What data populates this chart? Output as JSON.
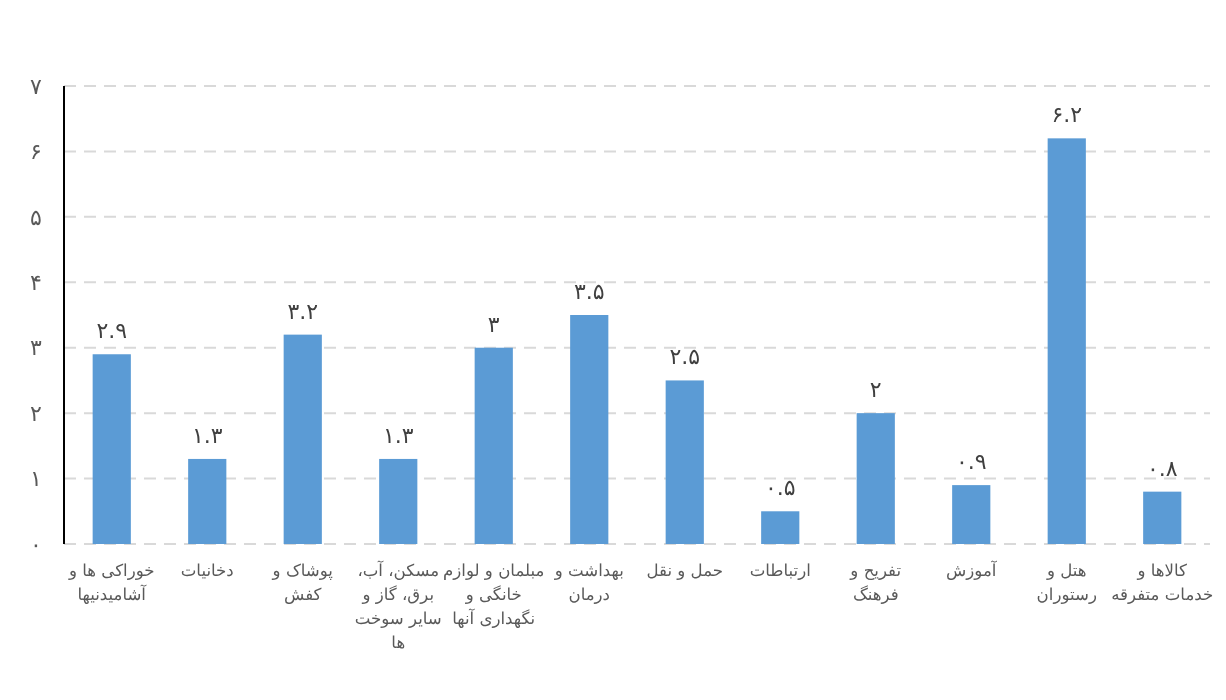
{
  "chart_data": {
    "type": "bar",
    "categories": [
      "خوراکی ها و\nآشامیدنیها",
      "دخانیات",
      "پوشاک و\nکفش",
      "مسکن، آب،\nبرق، گاز و\nسایر سوخت\nها",
      "مبلمان و لوازم\nخانگی و\nنگهداری آنها",
      "بهداشت و\nدرمان",
      "حمل و نقل",
      "ارتباطات",
      "تفریح و\nفرهنگ",
      "آموزش",
      "هتل و\nرستوران",
      "کالاها و\nخدمات متفرقه"
    ],
    "values": [
      2.9,
      1.3,
      3.2,
      1.3,
      3,
      3.5,
      2.5,
      0.5,
      2,
      0.9,
      6.2,
      0.8
    ],
    "value_labels": [
      "۲.۹",
      "۱.۳",
      "۳.۲",
      "۱.۳",
      "۳",
      "۳.۵",
      "۲.۵",
      "۰.۵",
      "۲",
      "۰.۹",
      "۶.۲",
      "۰.۸"
    ],
    "color": "#5b9bd5",
    "ylim": [
      0,
      7
    ],
    "yticks": [
      {
        "value": 0,
        "label": "۰"
      },
      {
        "value": 1,
        "label": "۱"
      },
      {
        "value": 2,
        "label": "۲"
      },
      {
        "value": 3,
        "label": "۳"
      },
      {
        "value": 4,
        "label": "۴"
      },
      {
        "value": 5,
        "label": "۵"
      },
      {
        "value": 6,
        "label": "۶"
      },
      {
        "value": 7,
        "label": "۷"
      }
    ],
    "grid": "y"
  }
}
